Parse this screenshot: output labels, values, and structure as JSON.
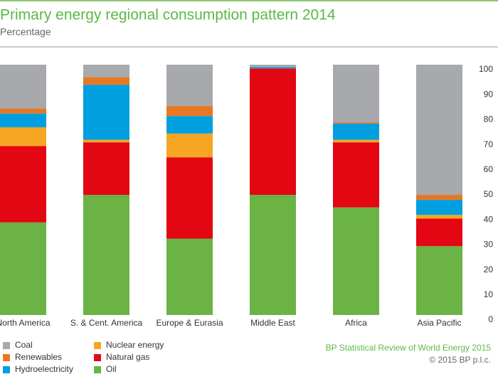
{
  "chart_data": {
    "type": "stacked_bar",
    "title": "Primary energy regional consumption pattern 2014",
    "subtitle": "Percentage",
    "categories": [
      "North America",
      "S. & Cent. America",
      "Europe & Eurasia",
      "Middle East",
      "Africa",
      "Asia Pacific"
    ],
    "series": [
      {
        "name": "Oil",
        "color": "#6ab344",
        "values": [
          37,
          48,
          30.5,
          48,
          43,
          27.5
        ]
      },
      {
        "name": "Natural gas",
        "color": "#e30613",
        "values": [
          30.5,
          21,
          32.5,
          50.5,
          26,
          11
        ]
      },
      {
        "name": "Nuclear energy",
        "color": "#f5a623",
        "values": [
          7.5,
          1,
          9.5,
          0,
          1,
          1.5
        ]
      },
      {
        "name": "Hydroelectricity",
        "color": "#009fdf",
        "values": [
          5.5,
          22,
          7,
          0.5,
          6.5,
          6
        ]
      },
      {
        "name": "Renewables",
        "color": "#e87722",
        "values": [
          2,
          3,
          4,
          0,
          0.5,
          2
        ]
      },
      {
        "name": "Coal",
        "color": "#a7a9ac",
        "values": [
          17.5,
          5,
          16.5,
          1,
          23,
          52
        ]
      }
    ],
    "ylim": [
      0,
      100
    ],
    "yticks": [
      0,
      10,
      20,
      30,
      40,
      50,
      60,
      70,
      80,
      90,
      100
    ],
    "source": "BP Statistical Review of World Energy 2015",
    "copyright": "© 2015 BP p.l.c."
  }
}
